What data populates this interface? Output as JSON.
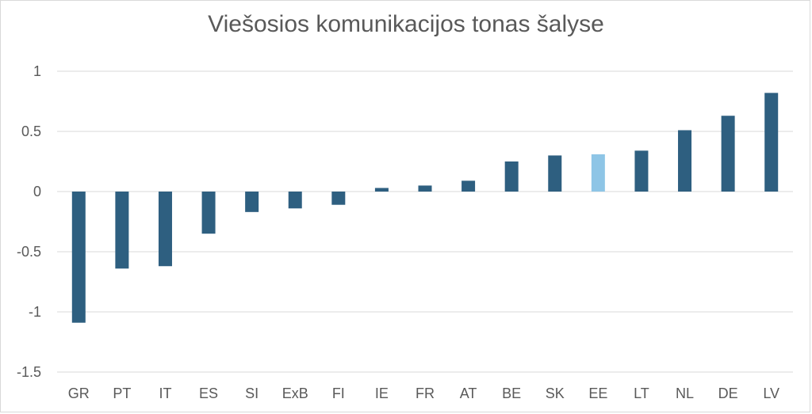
{
  "chart_data": {
    "type": "bar",
    "title": "Viešosios komunikacijos tonas šalyse",
    "categories": [
      "GR",
      "PT",
      "IT",
      "ES",
      "SI",
      "ExB",
      "FI",
      "IE",
      "FR",
      "AT",
      "BE",
      "SK",
      "EE",
      "LT",
      "NL",
      "DE",
      "LV"
    ],
    "values": [
      -1.09,
      -0.64,
      -0.62,
      -0.35,
      -0.17,
      -0.14,
      -0.11,
      0.03,
      0.05,
      0.09,
      0.25,
      0.3,
      0.31,
      0.34,
      0.51,
      0.63,
      0.82
    ],
    "highlight_category": "EE",
    "ylim": [
      -1.5,
      1
    ],
    "yticks": [
      1,
      0.5,
      0,
      -0.5,
      -1,
      -1.5
    ],
    "ytick_labels": [
      "1",
      "0.5",
      "0",
      "-0.5",
      "-1",
      "-1.5"
    ],
    "grid": true,
    "xlabel": "",
    "ylabel": "",
    "colors": {
      "bar": "#2e5f80",
      "highlight": "#8ec5e6",
      "grid": "#d9d9d9",
      "text": "#595959"
    }
  }
}
